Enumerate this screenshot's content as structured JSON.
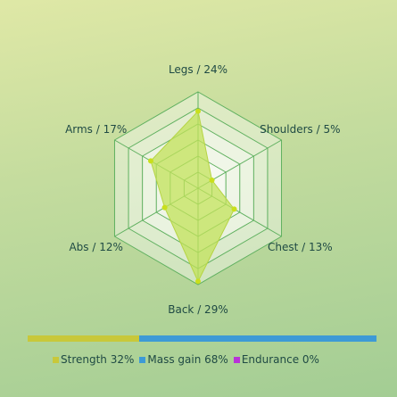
{
  "chart_data": {
    "type": "radar",
    "axes": [
      {
        "name": "Legs",
        "value": 24,
        "label": "Legs / 24%"
      },
      {
        "name": "Shoulders",
        "value": 5,
        "label": "Shoulders / 5%"
      },
      {
        "name": "Chest",
        "value": 13,
        "label": "Chest / 13%"
      },
      {
        "name": "Back",
        "value": 29,
        "label": "Back / 29%"
      },
      {
        "name": "Abs",
        "value": 12,
        "label": "Abs / 12%"
      },
      {
        "name": "Arms",
        "value": 17,
        "label": "Arms / 17%"
      }
    ],
    "max": 30,
    "grid_levels": 6,
    "series_color": "#c2e25a",
    "point_color": "#c9df1c"
  },
  "distribution": {
    "segments": [
      {
        "name": "Strength",
        "value": 32,
        "label": "Strength 32%",
        "color": "#c8c83a"
      },
      {
        "name": "Mass gain",
        "value": 68,
        "label": "Mass gain 68%",
        "color": "#3d9ad6"
      },
      {
        "name": "Endurance",
        "value": 0,
        "label": "Endurance 0%",
        "color": "#b832d8"
      }
    ]
  }
}
